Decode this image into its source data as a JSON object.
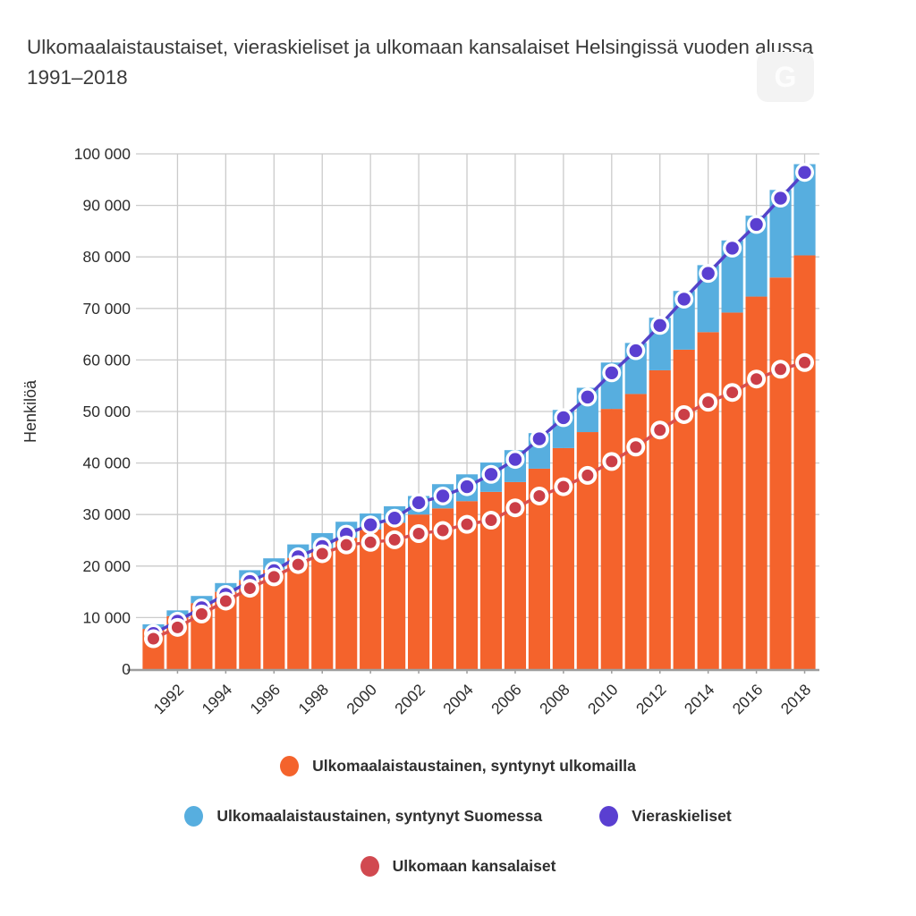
{
  "title": "Ulkomaalaistaustaiset, vieraskieliset ja ulkomaan kansalaiset Helsingissä vuoden alussa 1991–2018",
  "watermark_glyph": "G",
  "y_axis": {
    "label": "Henkilöä",
    "tick_labels": [
      "0",
      "10 000",
      "20 000",
      "30 000",
      "40 000",
      "50 000",
      "60 000",
      "70 000",
      "80 000",
      "90 000",
      "100 000"
    ]
  },
  "x_axis": {
    "tick_years": [
      1992,
      1994,
      1996,
      1998,
      2000,
      2002,
      2004,
      2006,
      2008,
      2010,
      2012,
      2014,
      2016,
      2018
    ]
  },
  "legend": {
    "items": [
      {
        "label": "Ulkomaalaistaustainen, syntynyt ulkomailla",
        "color": "#F4632C"
      },
      {
        "label": "Ulkomaalaistaustainen, syntynyt Suomessa",
        "color": "#57AEDF"
      },
      {
        "label": "Vieraskieliset",
        "color": "#5A3FD1"
      },
      {
        "label": "Ulkomaan kansalaiset",
        "color": "#D14950"
      }
    ]
  },
  "colors": {
    "bar_orange": "#F4632C",
    "bar_blue": "#57AEDF",
    "line_purple": "#5343C9",
    "dot_purple": "#5A3FD1",
    "line_red": "#DA4F4C",
    "dot_red": "#CB3E47",
    "grid": "#cbcbcb",
    "axis_line": "#9e9e9e",
    "tick_text": "#2d2d2d"
  },
  "chart_data": {
    "type": "bar",
    "subtype": "stacked-bars-with-line-overlays",
    "title": "Ulkomaalaistaustaiset, vieraskieliset ja ulkomaan kansalaiset Helsingissä vuoden alussa 1991–2018",
    "xlabel": "",
    "ylabel": "Henkilöä",
    "ylim": [
      0,
      100000
    ],
    "grid": true,
    "legend_position": "bottom",
    "categories": [
      1991,
      1992,
      1993,
      1994,
      1995,
      1996,
      1997,
      1998,
      1999,
      2000,
      2001,
      2002,
      2003,
      2004,
      2005,
      2006,
      2007,
      2008,
      2009,
      2010,
      2011,
      2012,
      2013,
      2014,
      2015,
      2016,
      2017,
      2018
    ],
    "series": [
      {
        "name": "Ulkomaalaistaustainen, syntynyt ulkomailla",
        "type": "bar",
        "stack": "bars",
        "color": "#F4632C",
        "values": [
          7800,
          10300,
          12800,
          15000,
          17300,
          19300,
          21600,
          23400,
          25500,
          27100,
          28400,
          30000,
          31200,
          32600,
          34400,
          36300,
          38900,
          42900,
          46000,
          50500,
          53400,
          58000,
          62000,
          65400,
          69200,
          72300,
          76000,
          80300
        ]
      },
      {
        "name": "Ulkomaalaistaustainen, syntynyt Suomessa",
        "type": "bar",
        "stack": "bars",
        "color": "#57AEDF",
        "values": [
          900,
          1100,
          1400,
          1700,
          1900,
          2200,
          2600,
          3000,
          3100,
          3100,
          3200,
          3600,
          4700,
          5200,
          5700,
          6200,
          6900,
          7400,
          8600,
          9000,
          9900,
          10200,
          11400,
          13000,
          14000,
          15700,
          17000,
          17700
        ]
      },
      {
        "name": "Vieraskieliset",
        "type": "line",
        "color": "#5A3FD1",
        "values": [
          6900,
          9300,
          11900,
          14500,
          17000,
          19100,
          21800,
          23800,
          26200,
          28000,
          29300,
          32300,
          33600,
          35400,
          37800,
          40700,
          44700,
          48800,
          52800,
          57500,
          61800,
          66700,
          71800,
          76800,
          81700,
          86300,
          91400,
          96400
        ]
      },
      {
        "name": "Ulkomaan kansalaiset",
        "type": "line",
        "color": "#CB3E47",
        "values": [
          5900,
          8100,
          10700,
          13200,
          15700,
          17900,
          20300,
          22400,
          24100,
          24600,
          25100,
          26300,
          26900,
          28100,
          28900,
          31300,
          33600,
          35400,
          37600,
          40300,
          43100,
          46400,
          49400,
          51800,
          53700,
          56300,
          58200,
          59500
        ]
      }
    ]
  }
}
